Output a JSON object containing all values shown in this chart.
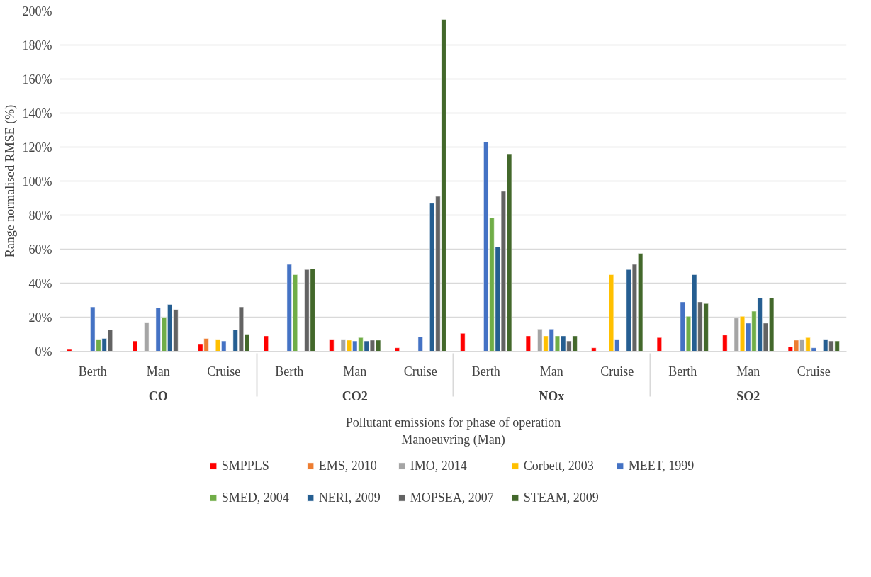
{
  "chart_data": {
    "type": "bar",
    "ylabel": "Range normalised RMSE (%)",
    "xlabel": "Pollutant emissions for phase of operation\nManoeuvring (Man)",
    "categories": [
      "Berth",
      "Man",
      "Cruise",
      "Berth",
      "Man",
      "Cruise",
      "Berth",
      "Man",
      "Cruise",
      "Berth",
      "Man",
      "Cruise"
    ],
    "annotations": [
      "CO",
      "CO2",
      "NOx",
      "SO2"
    ],
    "ylim": [
      0,
      200
    ],
    "yticks": [
      {
        "value": 0,
        "label": "0%"
      },
      {
        "value": 20,
        "label": "20%"
      },
      {
        "value": 40,
        "label": "40%"
      },
      {
        "value": 60,
        "label": "60%"
      },
      {
        "value": 80,
        "label": "80%"
      },
      {
        "value": 100,
        "label": "100%"
      },
      {
        "value": 120,
        "label": "120%"
      },
      {
        "value": 140,
        "label": "140%"
      },
      {
        "value": 160,
        "label": "160%"
      },
      {
        "value": 180,
        "label": "180%"
      },
      {
        "value": 200,
        "label": "200%"
      }
    ],
    "grid": "y",
    "legend": "bottom",
    "series": [
      {
        "name": "SMPPLS",
        "color": "#ff0000",
        "values": [
          1,
          6,
          4,
          9,
          7,
          2,
          10.5,
          9,
          2,
          8,
          9.5,
          2.5
        ]
      },
      {
        "name": "EMS, 2010",
        "color": "#ed7d31",
        "values": [
          null,
          null,
          7.5,
          null,
          null,
          null,
          null,
          null,
          null,
          null,
          null,
          6.5
        ]
      },
      {
        "name": "IMO, 2014",
        "color": "#a5a5a5",
        "values": [
          null,
          17,
          null,
          null,
          7,
          null,
          null,
          13,
          null,
          null,
          19.5,
          7
        ]
      },
      {
        "name": "Corbett, 2003",
        "color": "#ffc000",
        "values": [
          null,
          null,
          7,
          null,
          6.5,
          null,
          null,
          9,
          45,
          null,
          20.5,
          8
        ]
      },
      {
        "name": "MEET, 1999",
        "color": "#4472c4",
        "values": [
          26,
          25.5,
          6,
          51,
          6,
          8.5,
          123,
          13,
          7,
          29,
          16.5,
          2
        ]
      },
      {
        "name": "SMED, 2004",
        "color": "#70ad47",
        "values": [
          7,
          20,
          null,
          45,
          8,
          null,
          78.5,
          9,
          null,
          20.5,
          23.5,
          null
        ]
      },
      {
        "name": "NERI, 2009",
        "color": "#255e91",
        "values": [
          7.5,
          27.5,
          12.5,
          null,
          6,
          87,
          61.5,
          9,
          48,
          45,
          31.5,
          7
        ]
      },
      {
        "name": "MOPSEA, 2007",
        "color": "#636363",
        "values": [
          12.5,
          24.5,
          26,
          48,
          6.5,
          91,
          94,
          6,
          51,
          29,
          16.5,
          6
        ]
      },
      {
        "name": "STEAM, 2009",
        "color": "#43682b",
        "values": [
          null,
          null,
          10,
          48.5,
          6.5,
          195,
          116,
          9,
          57.5,
          28,
          31.5,
          6
        ]
      }
    ]
  }
}
